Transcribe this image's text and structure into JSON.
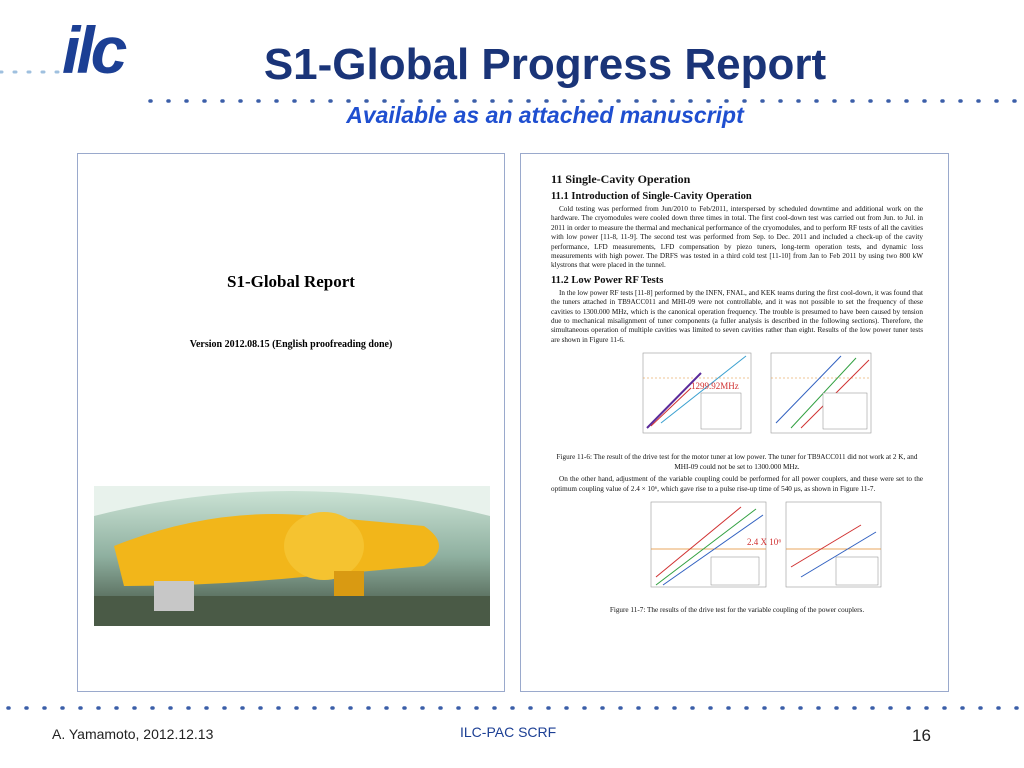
{
  "header": {
    "logo": "ilc",
    "title": "S1-Global Progress Report",
    "subtitle": "Available as an attached manuscript"
  },
  "left_page": {
    "title": "S1-Global Report",
    "version": "Version 2012.08.15 (English proofreading done)"
  },
  "right_page": {
    "chapter": "11 Single-Cavity Operation",
    "sections": [
      {
        "heading": "11.1 Introduction of Single-Cavity Operation",
        "paragraphs": [
          "Cold testing was performed from Jun/2010 to Feb/2011, interspersed by scheduled downtime and additional work on the hardware. The cryomodules were cooled down three times in total. The first cool-down test was carried out from Jun. to Jul. in 2011 in order to measure the thermal and mechanical performance of the cryomodules, and to perform RF tests of all the cavities with low power [11-8, 11-9]. The second test was performed from Sep. to Dec. 2011 and included a check-up of the cavity performance, LFD measurements, LFD compensation by piezo tuners, long-term operation tests, and dynamic loss measurements with high power. The DRFS was tested in a third cold test [11-10] from Jan to Feb 2011 by using two 800 kW klystrons that were placed in the tunnel."
        ]
      },
      {
        "heading": "11.2 Low Power RF Tests",
        "paragraphs": [
          "In the low power RF tests [11-8] performed by the INFN, FNAL, and KEK teams during the first cool-down, it was found that the tuners attached in TB9ACC011 and MHI-09 were not controllable, and it was not possible to set the frequency of these cavities to 1300.000 MHz, which is the canonical operation frequency. The trouble is presumed to have been caused by tension due to mechanical misalignment of tuner components (a fuller analysis is described in the following sections). Therefore, the simultaneous operation of multiple cavities was limited to seven cavities rather than eight. Results of the low power tuner tests are shown in Figure 11-6."
        ]
      }
    ],
    "figure1": {
      "annotation": "1299.92MHz",
      "caption": "Figure 11-6: The result of the drive test for the motor tuner at low power. The tuner for TB9ACC011 did not work at 2 K, and MHI-09 could not be set to 1300.000 MHz."
    },
    "paragraph_after": "On the other hand, adjustment of the variable coupling could be performed for all power couplers, and these were set to the optimum coupling value of 2.4 × 10⁶, which gave rise to a pulse rise-up time of 540 µs, as shown in Figure 11-7.",
    "figure2": {
      "annotation": "2.4 X 10⁶",
      "caption": "Figure 11-7: The results of the drive test for the variable coupling of the power couplers."
    }
  },
  "footer": {
    "author": "A. Yamamoto, 2012.12.13",
    "center": "ILC-PAC SCRF",
    "page": "16"
  }
}
